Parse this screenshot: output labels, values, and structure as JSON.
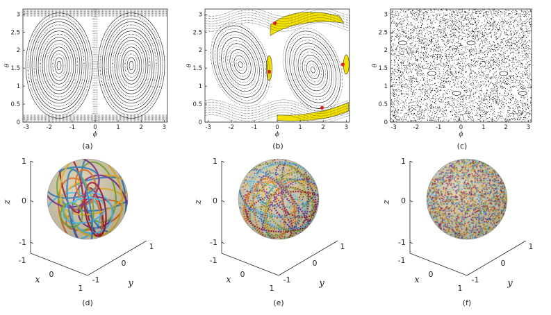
{
  "panels": [
    {
      "label": "(a)"
    },
    {
      "label": "(b)"
    },
    {
      "label": "(c)"
    },
    {
      "label": "(d)"
    },
    {
      "label": "(e)"
    },
    {
      "label": "(f)"
    }
  ],
  "chart_data": [
    {
      "type": "scatter",
      "panel": "(a)",
      "xlabel": "ϕ",
      "ylabel": "θ",
      "xlim": [
        -3.14159,
        3.14159
      ],
      "ylim": [
        0,
        3.14159
      ],
      "xticks": [
        "-3",
        "-2",
        "-1",
        "0",
        "1",
        "2",
        "3"
      ],
      "yticks": [
        "0",
        "0.5",
        "1",
        "1.5",
        "2",
        "2.5",
        "3"
      ],
      "centers": [
        [
          -1.5708,
          1.5708
        ],
        [
          1.5708,
          1.5708
        ]
      ],
      "regime": "regular"
    },
    {
      "type": "scatter",
      "panel": "(b)",
      "xlabel": "ϕ",
      "ylabel": "θ",
      "xlim": [
        -3.14159,
        3.14159
      ],
      "ylim": [
        0,
        3.14159
      ],
      "xticks": [
        "-3",
        "-2",
        "-1",
        "0",
        "1",
        "2",
        "3"
      ],
      "yticks": [
        "0",
        "0.5",
        "1",
        "1.5",
        "2",
        "2.5",
        "3"
      ],
      "centers": [
        [
          -1.6,
          1.6
        ],
        [
          1.55,
          1.45
        ]
      ],
      "highlight_color": "#f1e000",
      "marker_color": "#e02020",
      "markers": [
        [
          -0.1,
          2.75
        ],
        [
          -0.35,
          1.4
        ],
        [
          1.95,
          0.4
        ],
        [
          2.85,
          1.6
        ]
      ],
      "regime": "mixed"
    },
    {
      "type": "scatter",
      "panel": "(c)",
      "xlabel": "ϕ",
      "ylabel": "θ",
      "xlim": [
        -3.14159,
        3.14159
      ],
      "ylim": [
        0,
        3.14159
      ],
      "xticks": [
        "-3",
        "-2",
        "-1",
        "0",
        "1",
        "2",
        "3"
      ],
      "yticks": [
        "0",
        "0.5",
        "1",
        "1.5",
        "2",
        "2.5",
        "3"
      ],
      "islands": [
        [
          -2.6,
          2.2
        ],
        [
          0.45,
          2.2
        ],
        [
          -0.2,
          0.8
        ],
        [
          2.75,
          0.8
        ],
        [
          -1.3,
          1.35
        ],
        [
          1.9,
          1.35
        ]
      ],
      "regime": "chaotic"
    },
    {
      "type": "scatter",
      "panel": "(d)",
      "xlabel": "x",
      "ylabel": "y",
      "zlabel": "z",
      "xticks": [
        "-1",
        "0",
        "1"
      ],
      "yticks": [
        "-1",
        "0",
        "1"
      ],
      "zticks": [
        "-1",
        "0",
        "1"
      ],
      "regime": "regular"
    },
    {
      "type": "scatter",
      "panel": "(e)",
      "xlabel": "x",
      "ylabel": "y",
      "zlabel": "z",
      "xticks": [
        "-1",
        "0",
        "1"
      ],
      "yticks": [
        "-1",
        "0",
        "1"
      ],
      "zticks": [
        "-1",
        "0",
        "1"
      ],
      "regime": "mixed"
    },
    {
      "type": "scatter",
      "panel": "(f)",
      "xlabel": "x",
      "ylabel": "y",
      "zlabel": "z",
      "xticks": [
        "-1",
        "0",
        "1"
      ],
      "yticks": [
        "-1",
        "0",
        "1"
      ],
      "zticks": [
        "-1",
        "0",
        "1"
      ],
      "regime": "chaotic"
    }
  ]
}
